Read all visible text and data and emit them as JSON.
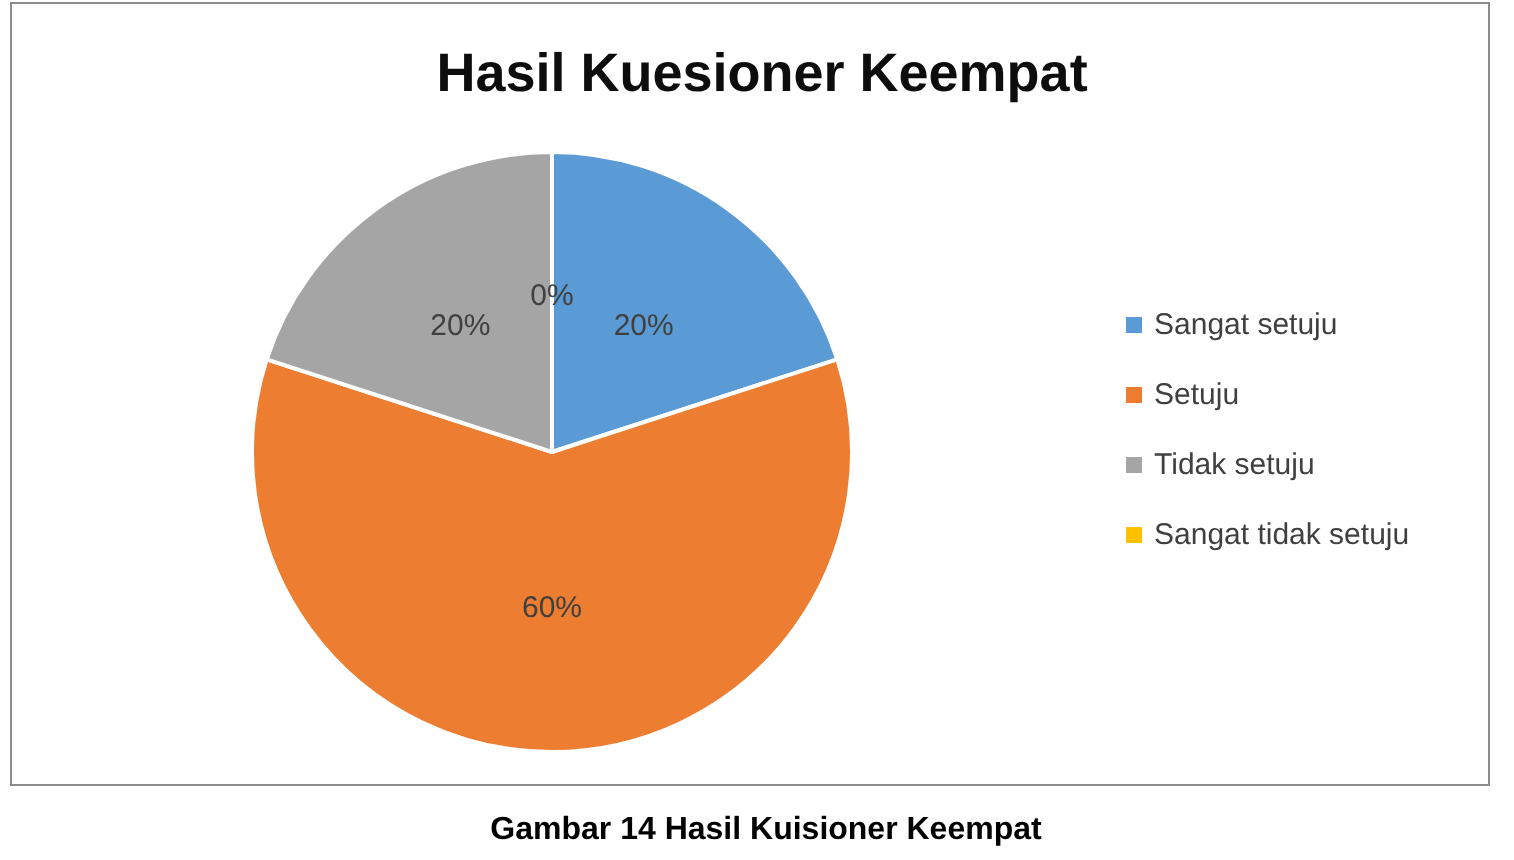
{
  "chart_data": {
    "type": "pie",
    "title": "Hasil Kuesioner Keempat",
    "categories": [
      "Sangat setuju",
      "Setuju",
      "Tidak setuju",
      "Sangat tidak setuju"
    ],
    "values": [
      20,
      60,
      20,
      0
    ],
    "colors": [
      "#5b9bd5",
      "#ed7d31",
      "#a5a5a5",
      "#ffc000"
    ],
    "value_labels": [
      "20%",
      "60%",
      "20%",
      "0%"
    ],
    "legend": "right",
    "annotations": [
      "Gambar 14 Hasil Kuisioner Keempat"
    ]
  }
}
